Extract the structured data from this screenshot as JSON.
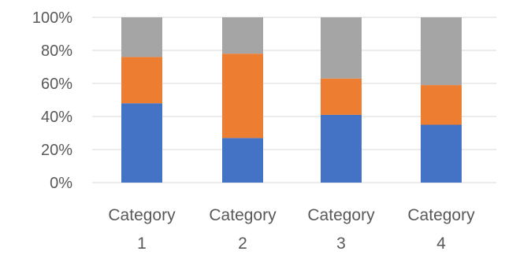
{
  "chart_data": {
    "type": "bar",
    "stacking": "percent",
    "categories": [
      [
        "Category",
        "1"
      ],
      [
        "Category",
        "2"
      ],
      [
        "Category",
        "3"
      ],
      [
        "Category",
        "4"
      ]
    ],
    "series": [
      {
        "color": "#4472c4",
        "values": [
          48,
          27,
          41,
          35
        ]
      },
      {
        "color": "#ed7d31",
        "values": [
          28,
          51,
          22,
          24
        ]
      },
      {
        "color": "#a5a5a5",
        "values": [
          24,
          22,
          37,
          41
        ]
      }
    ],
    "yticks": [
      "0%",
      "20%",
      "40%",
      "60%",
      "80%",
      "100%"
    ],
    "ylim": [
      0,
      100
    ],
    "grid": true,
    "legend": "none"
  }
}
